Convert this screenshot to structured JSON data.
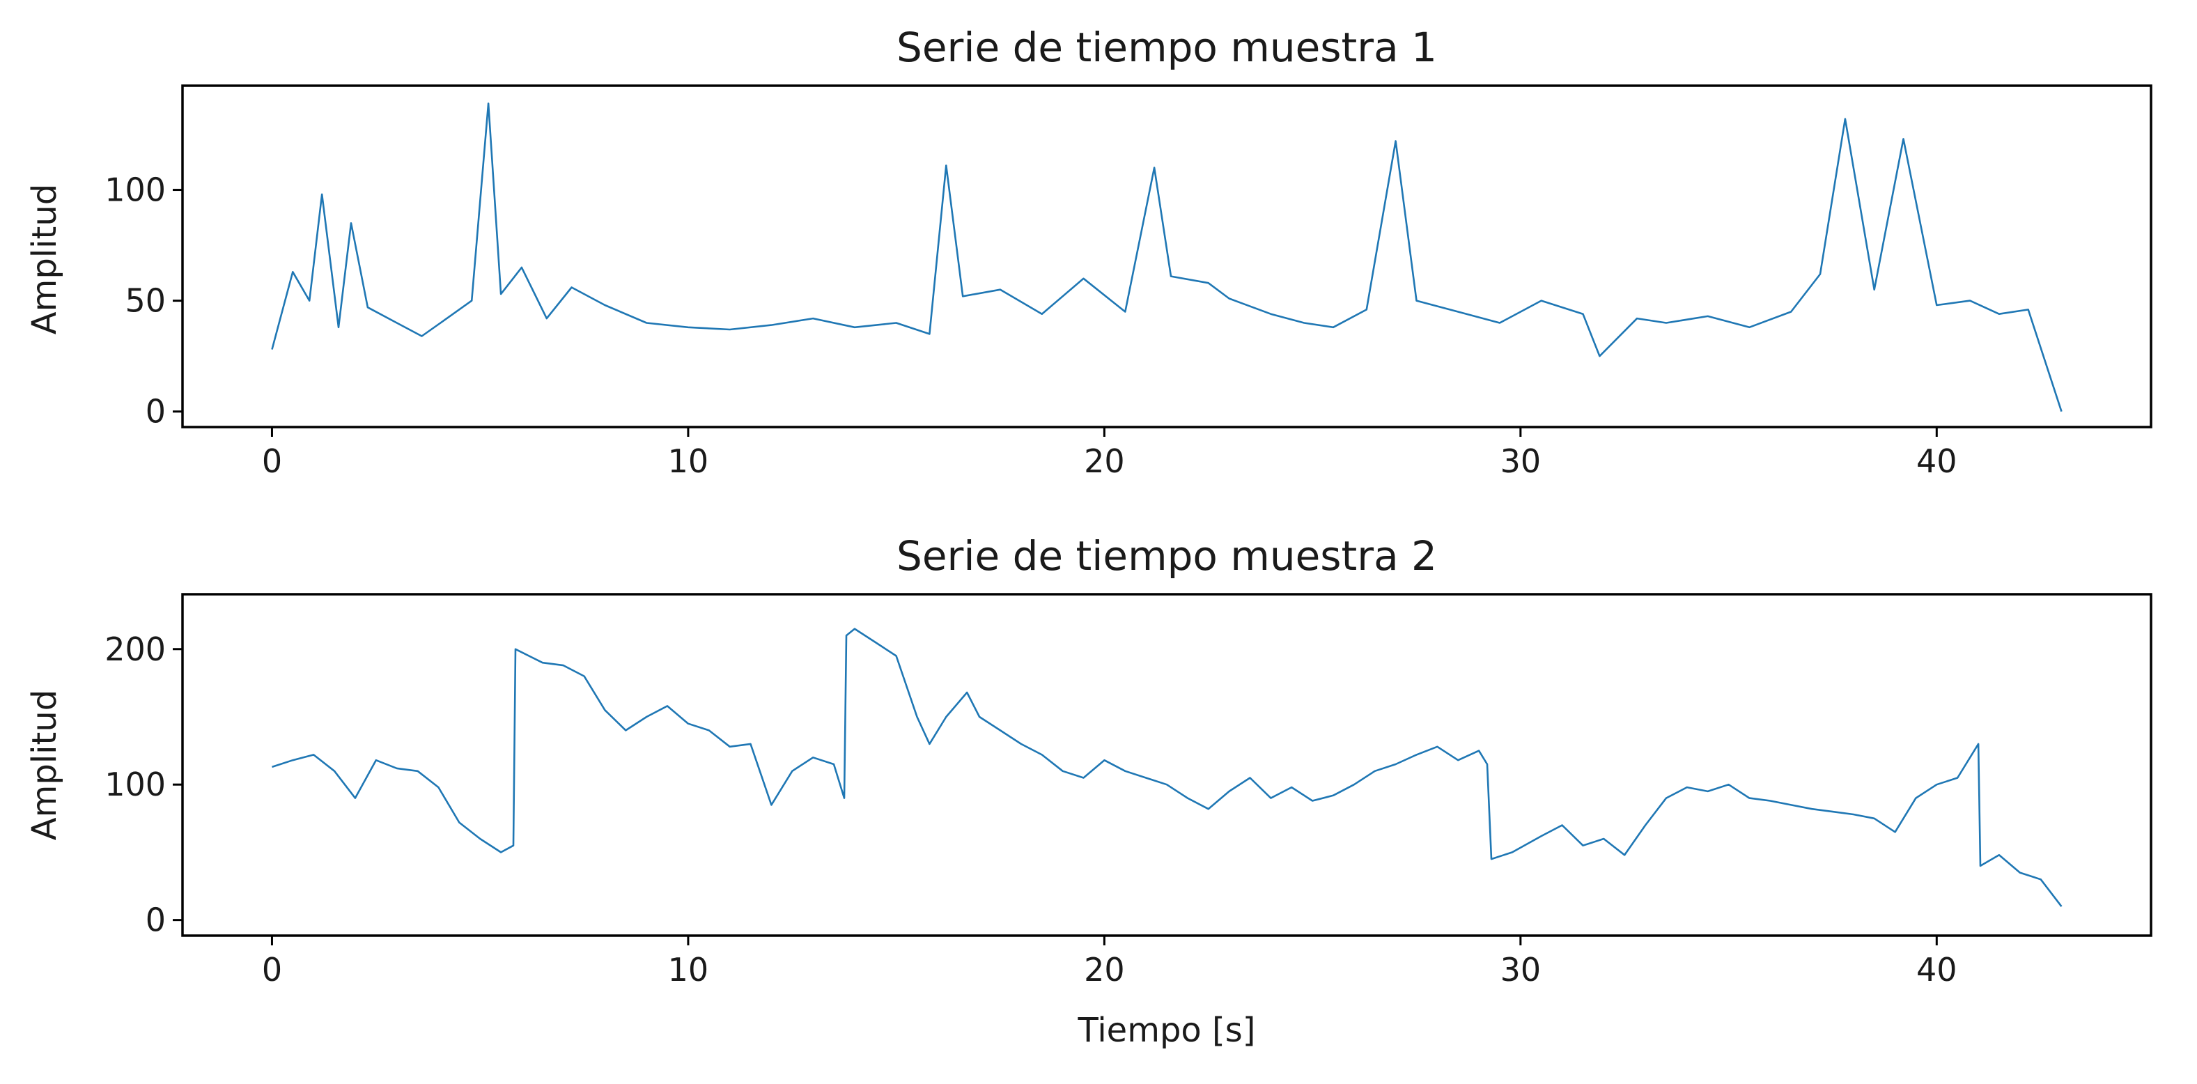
{
  "colors": {
    "series": "#1f77b4"
  },
  "chart_data": [
    {
      "type": "line",
      "title": "Serie de tiempo muestra 1",
      "xlabel": "",
      "ylabel": "Amplitud",
      "xlim": [
        -2.15,
        45.15
      ],
      "ylim": [
        -7,
        147
      ],
      "xticks": [
        0,
        10,
        20,
        30,
        40
      ],
      "yticks": [
        0,
        50,
        100
      ],
      "grid": false,
      "series": [
        {
          "color": "#1f77b4",
          "x": [
            0,
            0.2,
            0.5,
            0.9,
            1.2,
            1.6,
            1.9,
            2.3,
            3.0,
            3.6,
            4.2,
            4.8,
            5.2,
            5.5,
            6.0,
            6.6,
            7.2,
            8.0,
            9.0,
            10.0,
            11.0,
            12.0,
            13.0,
            14.0,
            15.0,
            15.8,
            16.2,
            16.6,
            17.5,
            18.5,
            19.5,
            20.5,
            21.2,
            21.6,
            22.5,
            23.0,
            24.0,
            24.8,
            25.5,
            26.3,
            27.0,
            27.5,
            28.5,
            29.5,
            30.5,
            31.5,
            31.9,
            32.8,
            33.5,
            34.5,
            35.5,
            36.5,
            37.2,
            37.8,
            38.5,
            39.2,
            40.0,
            40.8,
            41.5,
            42.2,
            43.0
          ],
          "y": [
            28,
            42,
            63,
            50,
            98,
            38,
            85,
            47,
            40,
            34,
            42,
            50,
            139,
            53,
            65,
            42,
            56,
            48,
            40,
            38,
            37,
            39,
            42,
            38,
            40,
            35,
            111,
            52,
            55,
            44,
            60,
            45,
            110,
            61,
            58,
            51,
            44,
            40,
            38,
            46,
            122,
            50,
            45,
            40,
            50,
            44,
            25,
            42,
            40,
            43,
            38,
            45,
            62,
            132,
            55,
            123,
            48,
            50,
            44,
            46,
            0
          ]
        }
      ]
    },
    {
      "type": "line",
      "title": "Serie de tiempo muestra 2",
      "xlabel": "Tiempo [s]",
      "ylabel": "Amplitud",
      "xlim": [
        -2.15,
        45.15
      ],
      "ylim": [
        -11.5,
        240.5
      ],
      "xticks": [
        0,
        10,
        20,
        30,
        40
      ],
      "yticks": [
        0,
        100,
        200
      ],
      "grid": false,
      "series": [
        {
          "color": "#1f77b4",
          "x": [
            0,
            0.5,
            1.0,
            1.5,
            2.0,
            2.5,
            3.0,
            3.5,
            4.0,
            4.5,
            5.0,
            5.5,
            5.8,
            5.85,
            6.5,
            7.0,
            7.5,
            8.0,
            8.5,
            9.0,
            9.5,
            10.0,
            10.5,
            11.0,
            11.5,
            12.0,
            12.5,
            13.0,
            13.5,
            13.75,
            13.8,
            14.0,
            14.5,
            15.0,
            15.5,
            15.8,
            16.2,
            16.7,
            17.0,
            17.5,
            18.0,
            18.5,
            19.0,
            19.5,
            20.0,
            20.5,
            21.0,
            21.5,
            22.0,
            22.5,
            23.0,
            23.5,
            24.0,
            24.5,
            25.0,
            25.5,
            26.0,
            26.5,
            27.0,
            27.5,
            28.0,
            28.5,
            29.0,
            29.2,
            29.3,
            29.8,
            30.5,
            31.0,
            31.5,
            32.0,
            32.5,
            33.0,
            33.5,
            34.0,
            34.5,
            35.0,
            35.5,
            36.0,
            36.5,
            37.0,
            37.5,
            38.0,
            38.5,
            39.0,
            39.5,
            40.0,
            40.5,
            41.0,
            41.05,
            41.5,
            42.0,
            42.5,
            43.0
          ],
          "y": [
            113,
            118,
            122,
            110,
            90,
            118,
            112,
            110,
            98,
            72,
            60,
            50,
            55,
            200,
            190,
            188,
            180,
            155,
            140,
            150,
            158,
            145,
            140,
            128,
            130,
            85,
            110,
            120,
            115,
            90,
            210,
            215,
            205,
            195,
            150,
            130,
            150,
            168,
            150,
            140,
            130,
            122,
            110,
            105,
            118,
            110,
            105,
            100,
            90,
            82,
            95,
            105,
            90,
            98,
            88,
            92,
            100,
            110,
            115,
            122,
            128,
            118,
            125,
            115,
            45,
            50,
            62,
            70,
            55,
            60,
            48,
            70,
            90,
            98,
            95,
            100,
            90,
            88,
            85,
            82,
            80,
            78,
            75,
            65,
            90,
            100,
            105,
            130,
            40,
            48,
            35,
            30,
            10
          ]
        }
      ]
    }
  ]
}
